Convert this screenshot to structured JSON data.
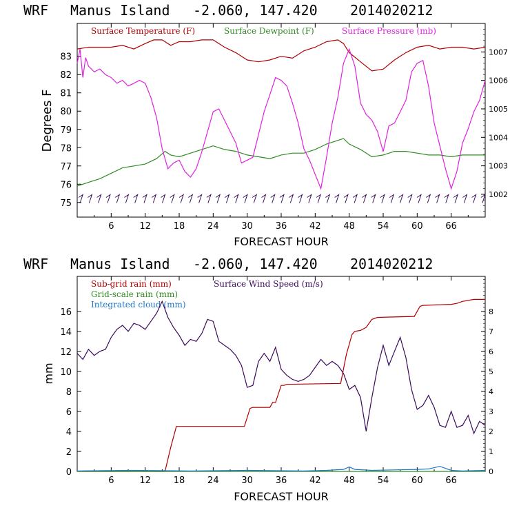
{
  "header": {
    "model": "WRF",
    "location": "Manus Island",
    "coords": "-2.060, 147.420",
    "run": "2014020212"
  },
  "colors": {
    "temperature": "#b00000",
    "dewpoint": "#2e8b22",
    "pressure": "#e020e0",
    "wind": "#3a0a5a",
    "subgrid_rain": "#b00000",
    "grid_rain": "#2e8b22",
    "cloud": "#1e78c8"
  },
  "chart_data": [
    {
      "type": "line",
      "xlabel": "FORECAST HOUR",
      "ylabel": "Degrees F",
      "xlim": [
        0,
        72
      ],
      "ylim": [
        74.2,
        84.8
      ],
      "x_ticks": [
        "6",
        "12",
        "18",
        "24",
        "30",
        "36",
        "42",
        "48",
        "54",
        "60",
        "66"
      ],
      "x_tick_values": [
        6,
        12,
        18,
        24,
        30,
        36,
        42,
        48,
        54,
        60,
        66
      ],
      "y_ticks": [
        "75",
        "76",
        "77",
        "78",
        "79",
        "80",
        "81",
        "82",
        "83"
      ],
      "y_tick_values": [
        75,
        76,
        77,
        78,
        79,
        80,
        81,
        82,
        83
      ],
      "y2lim": [
        1001.2,
        1008.0
      ],
      "y2_ticks": [
        "1002",
        "1003",
        "1004",
        "1005",
        "1006",
        "1007"
      ],
      "y2_tick_values": [
        1002,
        1003,
        1004,
        1005,
        1006,
        1007
      ],
      "legend": [
        "Surface Temperature (F)",
        "Surface Dewpoint (F)",
        "Surface Pressure (mb)"
      ],
      "series": [
        {
          "name": "Surface Temperature (F)",
          "axis": "left",
          "x": [
            0,
            2,
            4,
            6,
            8,
            10,
            12,
            13.5,
            15,
            16.5,
            18,
            20,
            22,
            24,
            26,
            28,
            30,
            32,
            34,
            36,
            38,
            40,
            42,
            44,
            46,
            47,
            48,
            50,
            52,
            54,
            56,
            58,
            60,
            62,
            64,
            66,
            68,
            70,
            72
          ],
          "values": [
            83.4,
            83.5,
            83.5,
            83.5,
            83.6,
            83.4,
            83.7,
            83.9,
            83.9,
            83.6,
            83.8,
            83.8,
            83.9,
            83.9,
            83.5,
            83.2,
            82.8,
            82.7,
            82.8,
            83.0,
            82.9,
            83.3,
            83.5,
            83.8,
            83.9,
            83.7,
            83.2,
            82.7,
            82.2,
            82.3,
            82.8,
            83.2,
            83.5,
            83.6,
            83.4,
            83.5,
            83.5,
            83.4,
            83.5
          ]
        },
        {
          "name": "Surface Dewpoint (F)",
          "axis": "left",
          "x": [
            0,
            2,
            4,
            6,
            8,
            10,
            12,
            14,
            15.5,
            16.5,
            18,
            20,
            22,
            24,
            26,
            28,
            30,
            32,
            34,
            36,
            38,
            40,
            42,
            44,
            46,
            47,
            48,
            50,
            52,
            54,
            56,
            58,
            60,
            62,
            64,
            66,
            68,
            70,
            72
          ],
          "values": [
            75.9,
            76.1,
            76.3,
            76.6,
            76.9,
            77.0,
            77.1,
            77.4,
            77.8,
            77.6,
            77.5,
            77.7,
            77.9,
            78.1,
            77.9,
            77.8,
            77.6,
            77.5,
            77.4,
            77.6,
            77.7,
            77.7,
            77.9,
            78.2,
            78.4,
            78.5,
            78.2,
            77.9,
            77.5,
            77.6,
            77.8,
            77.8,
            77.7,
            77.6,
            77.6,
            77.5,
            77.6,
            77.6,
            77.6
          ]
        },
        {
          "name": "Surface Pressure (mb)",
          "axis": "right",
          "x": [
            0,
            0.5,
            1,
            1.5,
            2,
            3,
            4,
            5,
            6,
            7,
            8,
            9,
            10,
            11,
            12,
            13,
            14,
            15,
            16,
            17,
            18,
            19,
            20,
            21,
            22,
            23,
            24,
            25,
            26,
            27,
            28,
            29,
            30,
            31,
            32,
            33,
            34,
            35,
            36,
            37,
            38,
            39,
            40,
            41,
            42,
            43,
            44,
            45,
            46,
            47,
            48,
            49,
            50,
            51,
            52,
            53,
            54,
            55,
            56,
            57,
            58,
            59,
            60,
            61,
            62,
            63,
            64,
            65,
            66,
            67,
            68,
            69,
            70,
            71,
            72
          ],
          "values": [
            1006.6,
            1007.1,
            1006.1,
            1006.8,
            1006.5,
            1006.3,
            1006.4,
            1006.2,
            1006.1,
            1005.9,
            1006.0,
            1005.8,
            1005.9,
            1006.0,
            1005.9,
            1005.4,
            1004.7,
            1003.6,
            1002.9,
            1003.1,
            1003.2,
            1002.8,
            1002.6,
            1002.9,
            1003.5,
            1004.2,
            1004.9,
            1005.0,
            1004.6,
            1004.2,
            1003.8,
            1003.1,
            1003.2,
            1003.3,
            1004.1,
            1004.9,
            1005.5,
            1006.1,
            1006.0,
            1005.8,
            1005.2,
            1004.5,
            1003.6,
            1003.2,
            1002.7,
            1002.2,
            1003.3,
            1004.5,
            1005.4,
            1006.6,
            1007.1,
            1006.5,
            1005.2,
            1004.8,
            1004.6,
            1004.2,
            1003.5,
            1004.4,
            1004.5,
            1004.9,
            1005.3,
            1006.3,
            1006.6,
            1006.7,
            1005.8,
            1004.5,
            1003.7,
            1002.9,
            1002.2,
            1002.8,
            1003.8,
            1004.3,
            1004.9,
            1005.3,
            1006.0
          ]
        }
      ],
      "wind_barbs": {
        "x_start": 0.5,
        "x_end": 71.5,
        "count": 45,
        "y": 75.2
      }
    },
    {
      "type": "line",
      "xlabel": "FORECAST HOUR",
      "ylabel": "mm",
      "xlim": [
        0,
        72
      ],
      "ylim": [
        0,
        19.5
      ],
      "x_ticks": [
        "6",
        "12",
        "18",
        "24",
        "30",
        "36",
        "42",
        "48",
        "54",
        "60",
        "66"
      ],
      "x_tick_values": [
        6,
        12,
        18,
        24,
        30,
        36,
        42,
        48,
        54,
        60,
        66
      ],
      "y_ticks": [
        "0",
        "2",
        "4",
        "6",
        "8",
        "10",
        "12",
        "14",
        "16"
      ],
      "y_tick_values": [
        0,
        2,
        4,
        6,
        8,
        10,
        12,
        14,
        16
      ],
      "y2lim": [
        0,
        9.75
      ],
      "y2_ticks": [
        "0",
        "1",
        "2",
        "3",
        "4",
        "5",
        "6",
        "7",
        "8"
      ],
      "y2_tick_values": [
        0,
        1,
        2,
        3,
        4,
        5,
        6,
        7,
        8
      ],
      "legend": [
        "Sub-grid rain (mm)",
        "Grid-scale rain (mm)",
        "Integrated cloud (mm)",
        "Surface Wind Speed (m/s)"
      ],
      "series": [
        {
          "name": "Sub-grid rain (mm)",
          "axis": "left",
          "x": [
            0,
            15.5,
            16.5,
            17.5,
            18,
            29.5,
            30.5,
            31,
            34,
            34.5,
            35,
            36,
            36.5,
            37,
            46.5,
            47.5,
            48.5,
            49,
            50,
            51,
            52,
            53,
            59.5,
            60.5,
            61,
            66,
            67,
            68,
            70,
            72
          ],
          "values": [
            0,
            0,
            2.4,
            4.5,
            4.5,
            4.5,
            6.3,
            6.4,
            6.4,
            6.9,
            6.9,
            8.6,
            8.6,
            8.7,
            8.8,
            11.7,
            13.7,
            14.0,
            14.1,
            14.4,
            15.2,
            15.4,
            15.5,
            16.5,
            16.6,
            16.7,
            16.8,
            17.0,
            17.2,
            17.2
          ]
        },
        {
          "name": "Grid-scale rain (mm)",
          "axis": "left",
          "x": [
            0,
            72
          ],
          "values": [
            0,
            0
          ]
        },
        {
          "name": "Integrated cloud (mm)",
          "axis": "left",
          "x": [
            0,
            10,
            20,
            30,
            40,
            44,
            47,
            48,
            49,
            52,
            56,
            60,
            62,
            64,
            65,
            66,
            68,
            72
          ],
          "values": [
            0.05,
            0.1,
            0.05,
            0.1,
            0.05,
            0.1,
            0.2,
            0.45,
            0.2,
            0.1,
            0.15,
            0.2,
            0.25,
            0.5,
            0.3,
            0.1,
            0.05,
            0.1
          ]
        },
        {
          "name": "Surface Wind Speed (m/s)",
          "axis": "right",
          "x": [
            0,
            1,
            2,
            3,
            4,
            5,
            6,
            7,
            8,
            9,
            10,
            11,
            12,
            13,
            14,
            15,
            16,
            17,
            18,
            19,
            20,
            21,
            22,
            23,
            24,
            25,
            26,
            27,
            28,
            29,
            30,
            31,
            32,
            33,
            34,
            35,
            36,
            37,
            38,
            39,
            40,
            41,
            42,
            43,
            44,
            45,
            46,
            47,
            48,
            49,
            50,
            51,
            52,
            53,
            54,
            55,
            56,
            57,
            58,
            59,
            60,
            61,
            62,
            63,
            64,
            65,
            66,
            67,
            68,
            69,
            70,
            71,
            72
          ],
          "values": [
            5.9,
            5.6,
            6.1,
            5.8,
            6.0,
            6.1,
            6.7,
            7.1,
            7.3,
            7.0,
            7.4,
            7.3,
            7.1,
            7.5,
            7.9,
            8.5,
            7.7,
            7.2,
            6.8,
            6.3,
            6.6,
            6.5,
            6.9,
            7.6,
            7.5,
            6.5,
            6.3,
            6.1,
            5.8,
            5.3,
            4.2,
            4.3,
            5.5,
            5.9,
            5.5,
            6.2,
            5.1,
            4.8,
            4.6,
            4.5,
            4.6,
            4.8,
            5.2,
            5.6,
            5.3,
            5.5,
            5.3,
            4.9,
            4.1,
            4.3,
            3.7,
            2.0,
            3.7,
            5.2,
            6.3,
            5.3,
            6.0,
            6.7,
            5.7,
            4.1,
            3.1,
            3.3,
            3.8,
            3.2,
            2.3,
            2.2,
            3.0,
            2.2,
            2.3,
            2.8,
            1.9,
            2.5,
            2.3
          ]
        }
      ]
    }
  ]
}
